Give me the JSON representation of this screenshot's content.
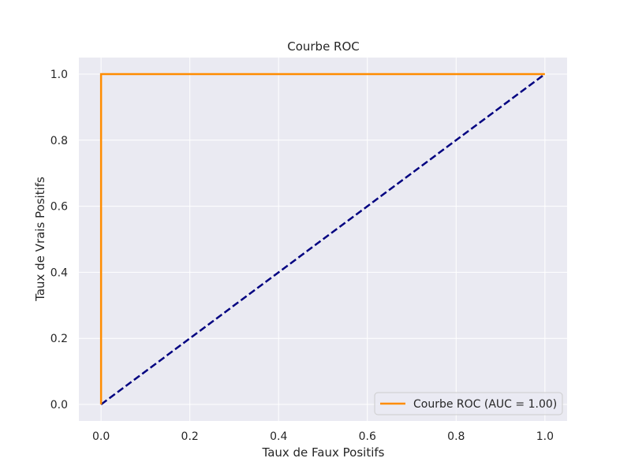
{
  "chart_data": {
    "type": "line",
    "title": "Courbe ROC",
    "xlabel": "Taux de Faux Positifs",
    "ylabel": "Taux de Vrais Positifs",
    "xlim": [
      -0.05,
      1.05
    ],
    "ylim": [
      -0.05,
      1.05
    ],
    "xticks": [
      0.0,
      0.2,
      0.4,
      0.6,
      0.8,
      1.0
    ],
    "yticks": [
      0.0,
      0.2,
      0.4,
      0.6,
      0.8,
      1.0
    ],
    "xtick_labels": [
      "0.0",
      "0.2",
      "0.4",
      "0.6",
      "0.8",
      "1.0"
    ],
    "ytick_labels": [
      "0.0",
      "0.2",
      "0.4",
      "0.6",
      "0.8",
      "1.0"
    ],
    "grid": true,
    "legend_position": "lower-right",
    "series": [
      {
        "name": "Courbe ROC (AUC = 1.00)",
        "color": "#ff8c00",
        "style": "solid",
        "x": [
          0.0,
          0.0,
          1.0
        ],
        "y": [
          0.0,
          1.0,
          1.0
        ]
      },
      {
        "color": "#000080",
        "style": "dashed",
        "x": [
          0.0,
          1.0
        ],
        "y": [
          0.0,
          1.0
        ]
      }
    ],
    "colors": {
      "plot_background": "#eaeaf2",
      "grid": "#ffffff"
    }
  }
}
